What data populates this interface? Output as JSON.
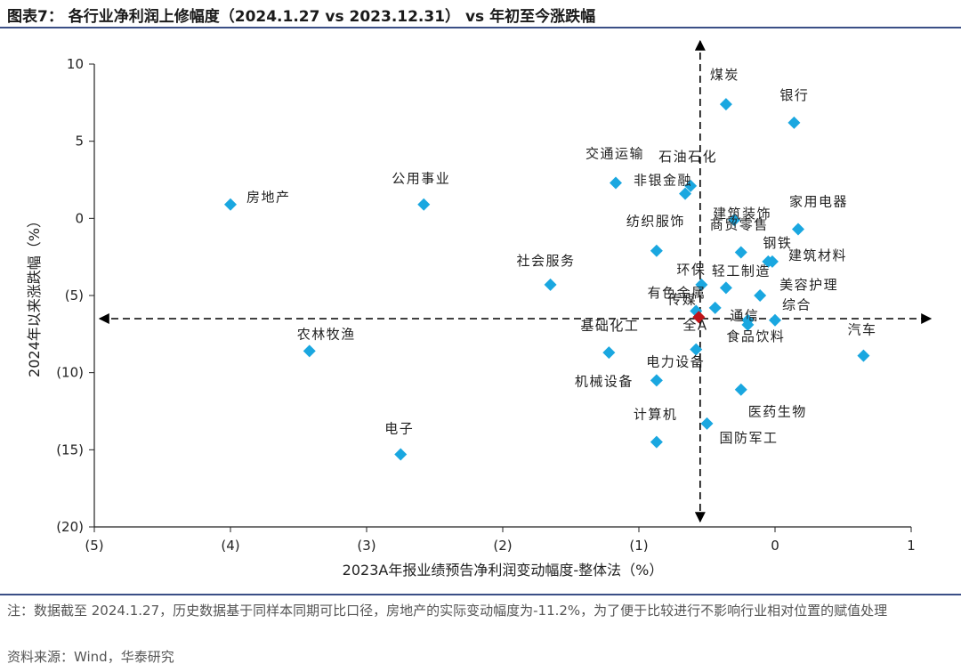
{
  "header": {
    "title": "图表7：  各行业净利润上修幅度（2024.1.27 vs 2023.12.31）  vs  年初至今涨跌幅"
  },
  "footer": {
    "note": "注：数据截至 2024.1.27，历史数据基于同样本同期可比口径，房地产的实际变动幅度为-11.2%，为了便于比较进行不影响行业相对位置的赋值处理",
    "source": "资料来源：Wind，华泰研究"
  },
  "colors": {
    "point": "#1aa7e0",
    "highlight": "#c0141a",
    "axis": "#000000"
  },
  "chart_data": {
    "type": "scatter",
    "xlabel": "2023A年报业绩预告净利润变动幅度-整体法（%）",
    "ylabel": "2024年以来涨跌幅（%）",
    "xlim": [
      -5,
      1
    ],
    "ylim": [
      -20,
      10
    ],
    "x_ticks": [
      -5,
      -4,
      -3,
      -2,
      -1,
      0,
      1
    ],
    "x_tick_labels": [
      "(5)",
      "(4)",
      "(3)",
      "(2)",
      "(1)",
      "0",
      "1"
    ],
    "y_ticks": [
      10,
      5,
      0,
      -5,
      -10,
      -15,
      -20
    ],
    "y_tick_labels": [
      "10",
      "5",
      "0",
      "(5)",
      "(10)",
      "(15)",
      "(20)"
    ],
    "reference_lines": {
      "x": -0.55,
      "y": -6.5
    },
    "points": [
      {
        "label": "煤炭",
        "x": -0.36,
        "y": 7.4
      },
      {
        "label": "银行",
        "x": 0.14,
        "y": 6.2
      },
      {
        "label": "交通运输",
        "x": -1.17,
        "y": 2.3
      },
      {
        "label": "石油石化",
        "x": -0.62,
        "y": 2.1
      },
      {
        "label": "非银金融",
        "x": -0.66,
        "y": 1.6
      },
      {
        "label": "房地产",
        "x": -4.0,
        "y": 0.9
      },
      {
        "label": "公用事业",
        "x": -2.58,
        "y": 0.9
      },
      {
        "label": "建筑装饰",
        "x": -0.3,
        "y": -0.1
      },
      {
        "label": "家用电器",
        "x": 0.17,
        "y": -0.7
      },
      {
        "label": "纺织服饰",
        "x": -0.87,
        "y": -2.1
      },
      {
        "label": "商贸零售",
        "x": -0.25,
        "y": -2.2
      },
      {
        "label": "钢铁",
        "x": -0.05,
        "y": -2.8
      },
      {
        "label": "建筑材料",
        "x": -0.02,
        "y": -2.8
      },
      {
        "label": "社会服务",
        "x": -1.65,
        "y": -4.3
      },
      {
        "label": "环保",
        "x": -0.54,
        "y": -4.3
      },
      {
        "label": "轻工制造",
        "x": -0.36,
        "y": -4.5
      },
      {
        "label": "美容护理",
        "x": -0.11,
        "y": -5.0
      },
      {
        "label": "有色金属",
        "x": -0.44,
        "y": -5.8
      },
      {
        "label": "传媒",
        "x": -0.58,
        "y": -6.0
      },
      {
        "label": "全A",
        "x": -0.56,
        "y": -6.4,
        "highlight": true
      },
      {
        "label": "通信",
        "x": -0.2,
        "y": -6.6
      },
      {
        "label": "综合",
        "x": 0.0,
        "y": -6.6
      },
      {
        "label": "食品饮料",
        "x": -0.2,
        "y": -6.9
      },
      {
        "label": "农林牧渔",
        "x": -3.42,
        "y": -8.6
      },
      {
        "label": "基础化工",
        "x": -1.22,
        "y": -8.7
      },
      {
        "label": "汽车",
        "x": 0.65,
        "y": -8.9
      },
      {
        "label": "电力设备",
        "x": -0.58,
        "y": -8.5
      },
      {
        "label": "机械设备",
        "x": -0.87,
        "y": -10.5
      },
      {
        "label": "医药生物",
        "x": -0.25,
        "y": -11.1
      },
      {
        "label": "计算机",
        "x": -0.87,
        "y": -14.5
      },
      {
        "label": "国防军工",
        "x": -0.5,
        "y": -13.3
      },
      {
        "label": "电子",
        "x": -2.75,
        "y": -15.3
      }
    ]
  }
}
